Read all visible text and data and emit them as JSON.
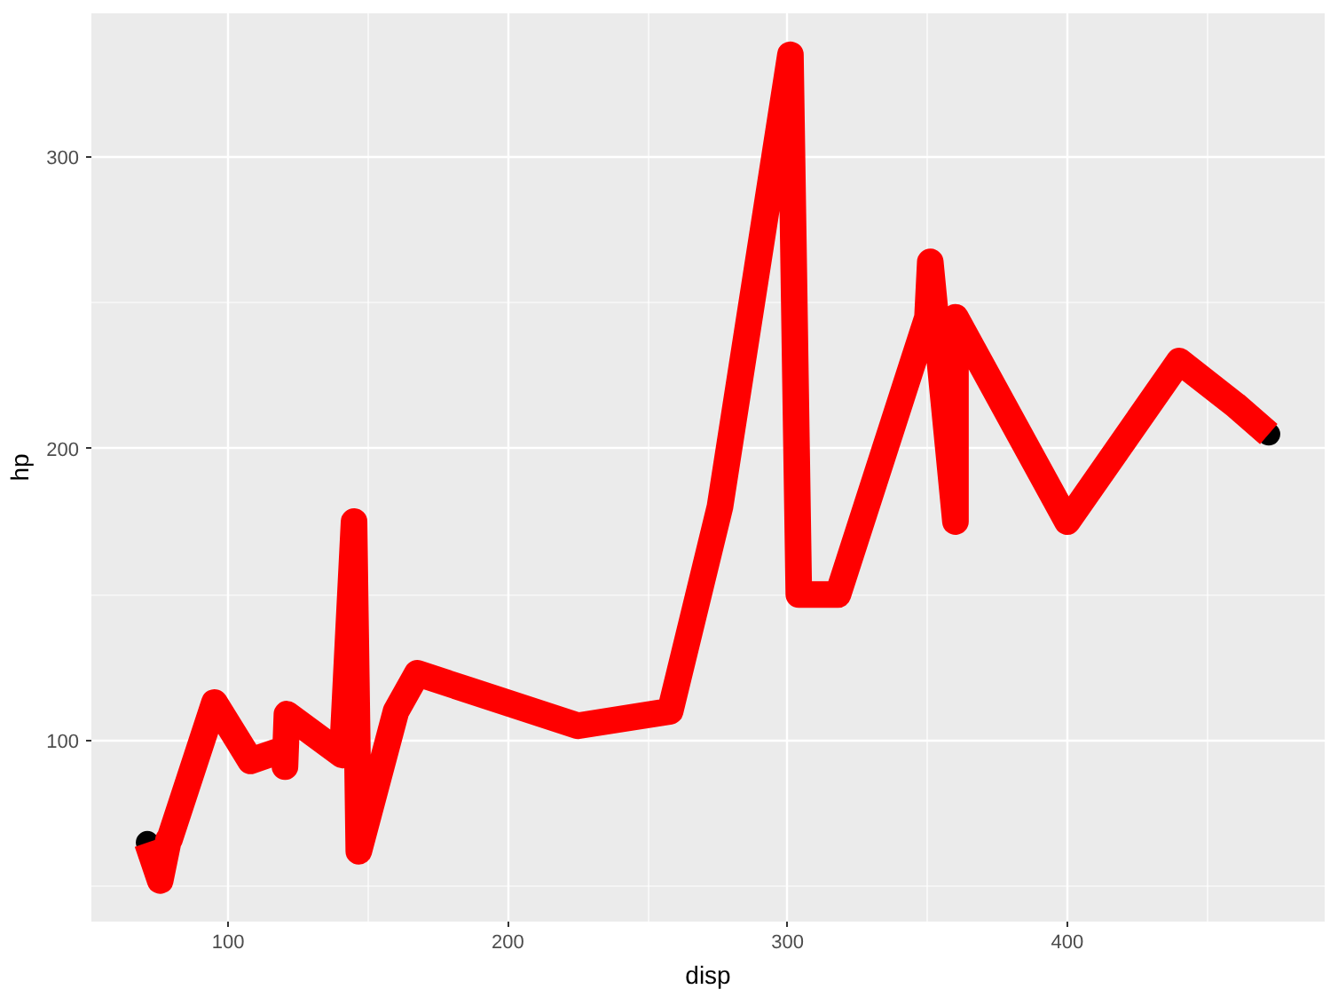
{
  "chart_data": {
    "type": "line",
    "xlabel": "disp",
    "ylabel": "hp",
    "xlim": [
      51.1,
      492.0
    ],
    "ylim": [
      37.9,
      349.2
    ],
    "xticks": [
      100,
      200,
      300,
      400
    ],
    "yticks": [
      100,
      200,
      300
    ],
    "grid": true,
    "series": [
      {
        "type": "scatter",
        "color": "#000000",
        "marker": "circle",
        "x": [
          71.1,
          472
        ],
        "values": [
          65,
          205
        ]
      },
      {
        "color": "#ff0000",
        "line_style": "solid",
        "x": [
          71.1,
          75.7,
          78.7,
          79,
          95.1,
          108,
          120.1,
          120.3,
          121,
          140.8,
          145,
          146.7,
          160,
          160,
          167.6,
          167.6,
          225,
          258,
          275.8,
          275.8,
          275.8,
          301,
          304,
          318,
          350,
          351,
          360,
          360,
          400,
          440,
          460,
          472
        ],
        "values": [
          65,
          52,
          66,
          66,
          113,
          93,
          97,
          91,
          109,
          95,
          175,
          62,
          110,
          110,
          123,
          123,
          105,
          110,
          180,
          180,
          180,
          335,
          150,
          150,
          245,
          264,
          175,
          245,
          175,
          230,
          215,
          205
        ]
      }
    ]
  }
}
